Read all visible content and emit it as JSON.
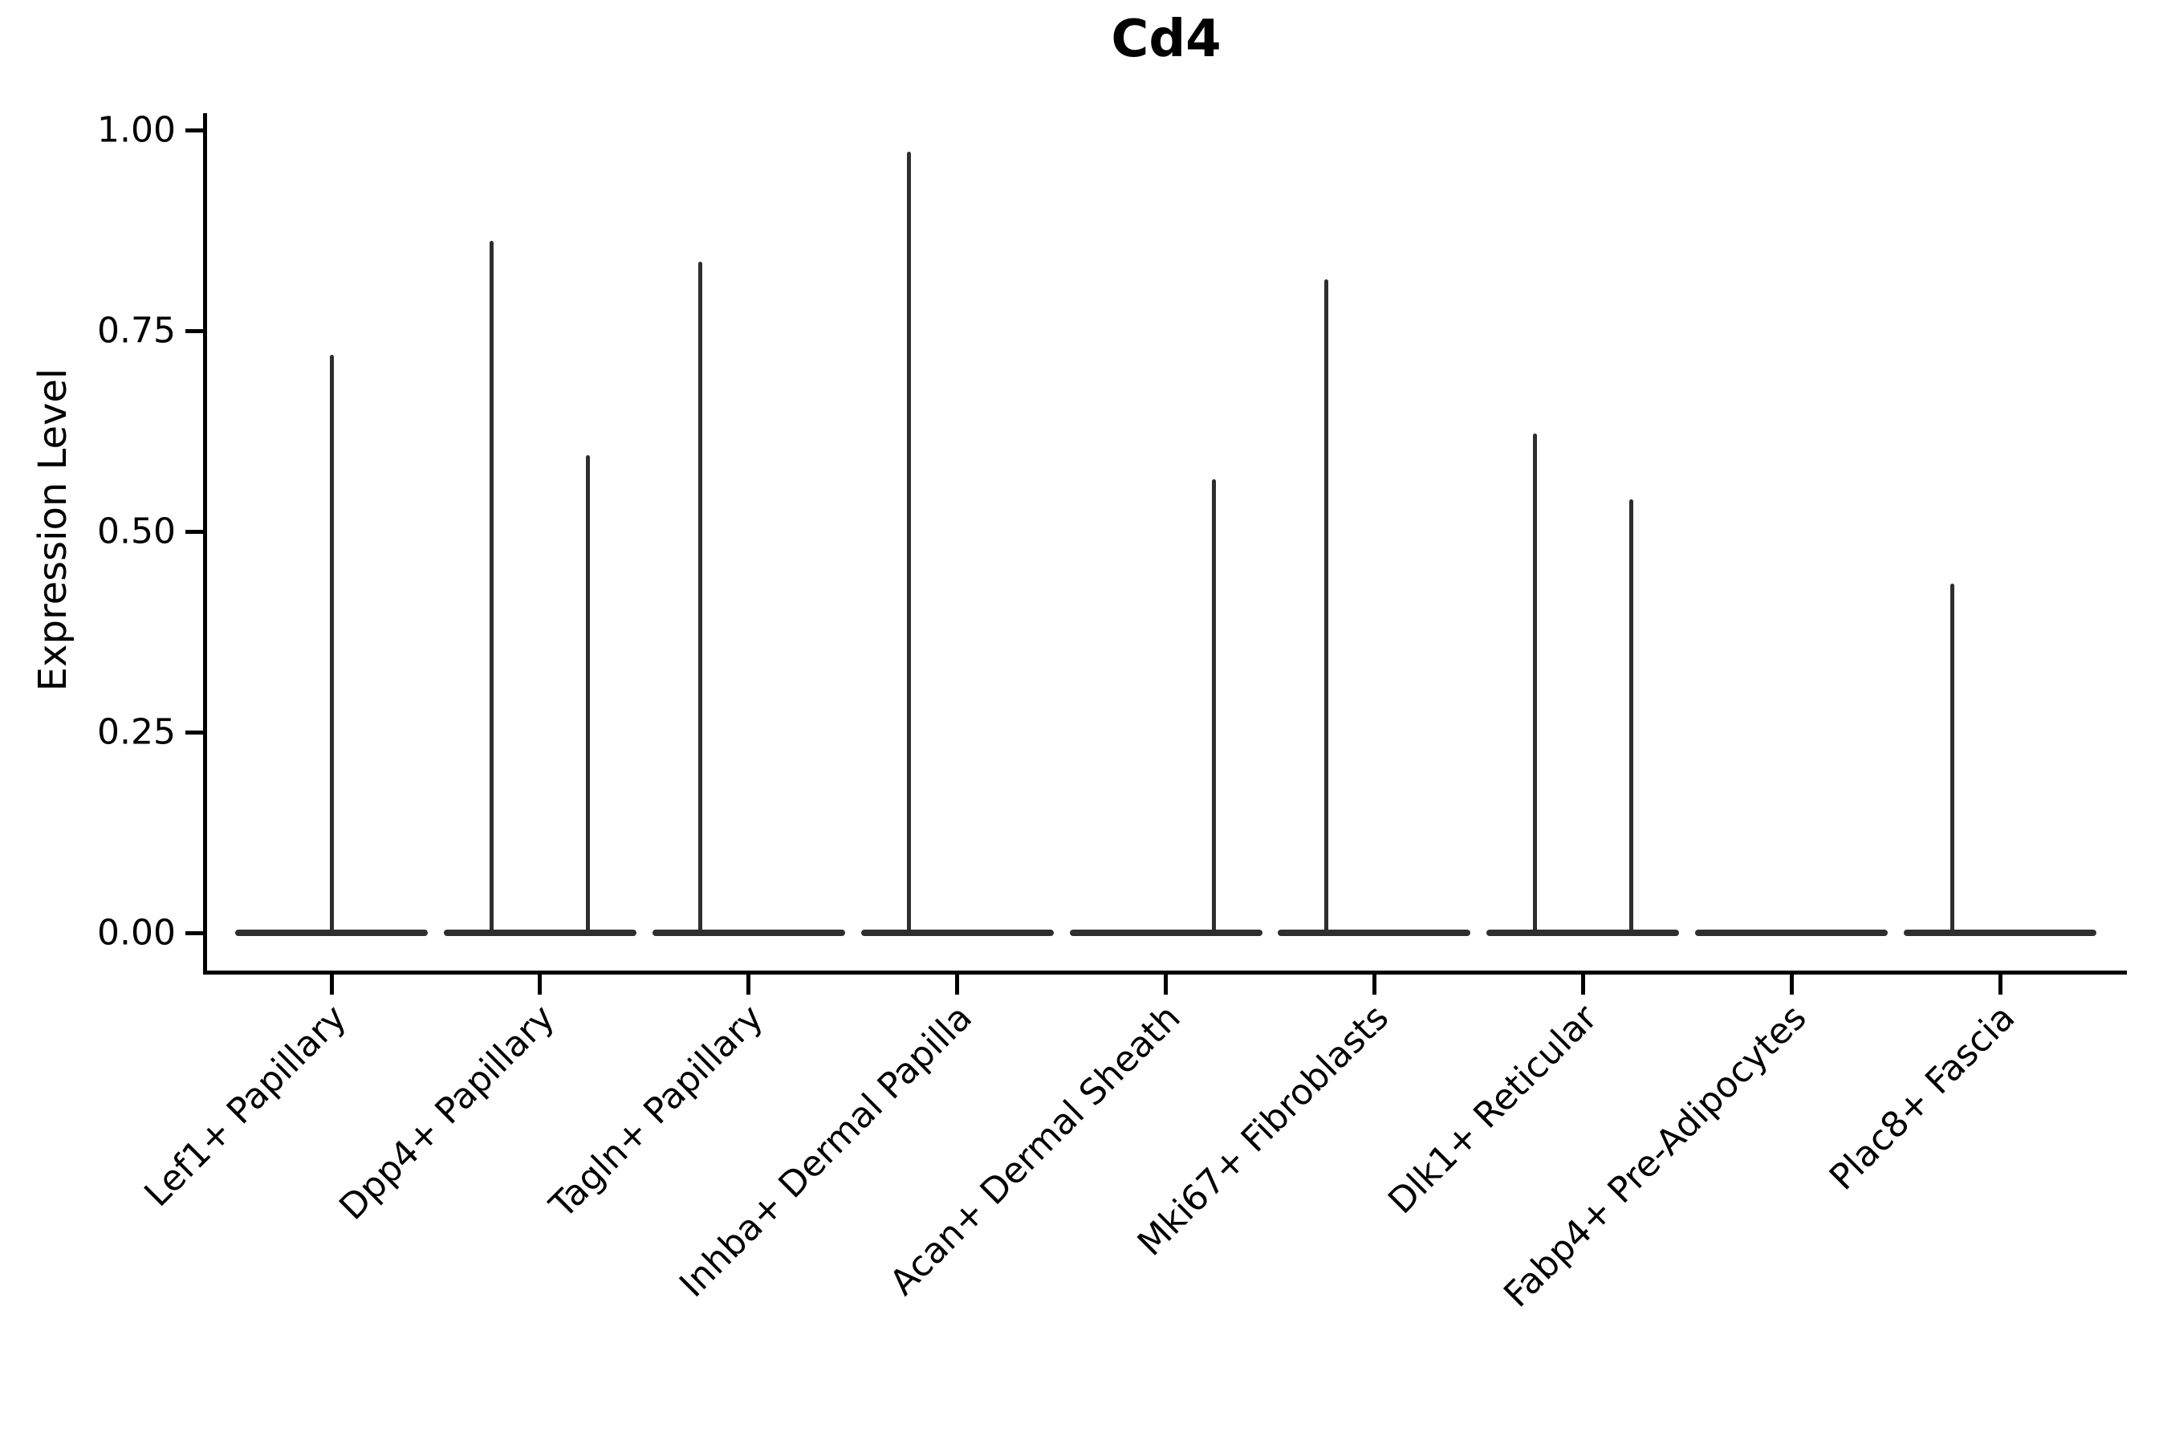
{
  "title": "Cd4",
  "ylabel": "Expression Level",
  "chart_data": {
    "type": "violin",
    "title": "Cd4",
    "xlabel": "",
    "ylabel": "Expression Level",
    "ylim": [
      0.0,
      1.0
    ],
    "ytick_values": [
      0.0,
      0.25,
      0.5,
      0.75,
      1.0
    ],
    "ytick_labels": [
      "0.00",
      "0.25",
      "0.50",
      "0.75",
      "1.00"
    ],
    "categories": [
      "Lef1+ Papillary",
      "Dpp4+ Papillary",
      "Tagln+ Papillary",
      "Inhba+ Dermal Papilla",
      "Acan+ Dermal Sheath",
      "Mki67+ Fibroblasts",
      "Dlk1+ Reticular",
      "Fabp4+ Pre-Adipocytes",
      "Plac8+ Fascia"
    ],
    "violins": [
      {
        "category": "Lef1+ Papillary",
        "category_index": 0,
        "position": "center",
        "baseline_value": 0.0,
        "max_value": 0.72
      },
      {
        "category": "Dpp4+ Papillary",
        "category_index": 1,
        "position": "left",
        "baseline_value": 0.0,
        "max_value": 0.862
      },
      {
        "category": "Dpp4+ Papillary",
        "category_index": 1,
        "position": "right",
        "baseline_value": 0.0,
        "max_value": 0.595
      },
      {
        "category": "Tagln+ Papillary",
        "category_index": 2,
        "position": "left",
        "baseline_value": 0.0,
        "max_value": 0.836
      },
      {
        "category": "Inhba+ Dermal Papilla",
        "category_index": 3,
        "position": "left",
        "baseline_value": 0.0,
        "max_value": 0.973
      },
      {
        "category": "Acan+ Dermal Sheath",
        "category_index": 4,
        "position": "right",
        "baseline_value": 0.0,
        "max_value": 0.565
      },
      {
        "category": "Mki67+ Fibroblasts",
        "category_index": 5,
        "position": "left",
        "baseline_value": 0.0,
        "max_value": 0.814
      },
      {
        "category": "Dlk1+ Reticular",
        "category_index": 6,
        "position": "left",
        "baseline_value": 0.0,
        "max_value": 0.622
      },
      {
        "category": "Dlk1+ Reticular",
        "category_index": 6,
        "position": "right",
        "baseline_value": 0.0,
        "max_value": 0.54
      },
      {
        "category": "Fabp4+ Pre-Adipocytes",
        "category_index": 7,
        "position": "none",
        "baseline_value": 0.0,
        "max_value": 0.0
      },
      {
        "category": "Plac8+ Fascia",
        "category_index": 8,
        "position": "left",
        "baseline_value": 0.0,
        "max_value": 0.435
      }
    ],
    "colors": {
      "violin": "#2e2e2e",
      "axis": "#000000",
      "text": "#000000",
      "background": "#ffffff"
    },
    "grid": false,
    "legend": "none"
  }
}
